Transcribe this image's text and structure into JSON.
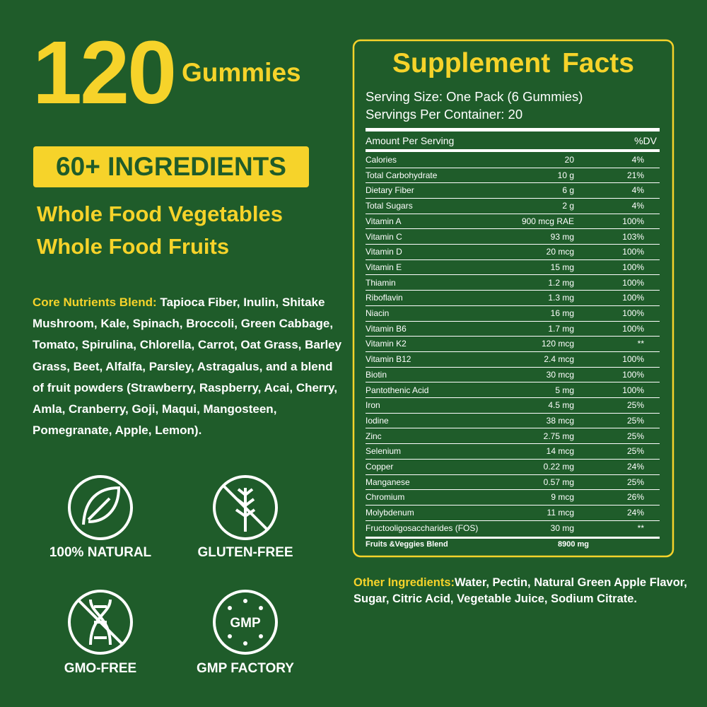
{
  "left": {
    "count": "120",
    "unit": "Gummies",
    "badge": "60+ INGREDIENTS",
    "lines": [
      "Whole Food Vegetables",
      "Whole Food Fruits"
    ],
    "core_label": "Core Nutrients Blend:",
    "core_text": "Tapioca Fiber, Inulin, Shitake Mushroom, Kale, Spinach, Broccoli, Green Cabbage, Tomato, Spirulina, Chlorella, Carrot, Oat Grass, Barley Grass, Beet, Alfalfa, Parsley, Astragalus, and a blend of fruit powders (Strawberry, Raspberry, Acai, Cherry, Amla, Cranberry, Goji, Maqui, Mangosteen, Pomegranate, Apple, Lemon).",
    "icons": [
      "100% NATURAL",
      "GLUTEN-FREE",
      "GMO-FREE",
      "GMP FACTORY"
    ],
    "gmp": "GMP"
  },
  "supplement_facts": {
    "title": "Supplement Facts",
    "serving_size": "Serving Size: One Pack (6 Gummies)",
    "servings": "Servings Per Container: 20",
    "header": [
      "Amount Per Serving",
      "%DV"
    ],
    "rows": [
      [
        "Calories",
        "20",
        "4%"
      ],
      [
        "Total Carbohydrate",
        "10 g",
        "21%"
      ],
      [
        "Dietary Fiber",
        "6 g",
        "4%"
      ],
      [
        "Total Sugars",
        "2 g",
        "4%"
      ],
      [
        "Vitamin A",
        "900 mcg RAE",
        "100%"
      ],
      [
        "Vitamin C",
        "93 mg",
        "103%"
      ],
      [
        "Vitamin D",
        "20 mcg",
        "100%"
      ],
      [
        "Vitamin E",
        "15 mg",
        "100%"
      ],
      [
        "Thiamin",
        "1.2 mg",
        "100%"
      ],
      [
        "Riboflavin",
        "1.3 mg",
        "100%"
      ],
      [
        "Niacin",
        "16 mg",
        "100%"
      ],
      [
        "Vitamin B6",
        "1.7 mg",
        "100%"
      ],
      [
        "Vitamin K2",
        "120 mcg",
        "**"
      ],
      [
        "Vitamin B12",
        "2.4 mcg",
        "100%"
      ],
      [
        "Biotin",
        "30 mcg",
        "100%"
      ],
      [
        "Pantothenic Acid",
        "5 mg",
        "100%"
      ],
      [
        "Iron",
        "4.5 mg",
        "25%"
      ],
      [
        "Iodine",
        "38 mcg",
        "25%"
      ],
      [
        "Zinc",
        "2.75 mg",
        "25%"
      ],
      [
        "Selenium",
        "14 mcg",
        "25%"
      ],
      [
        "Copper",
        "0.22 mg",
        "24%"
      ],
      [
        "Manganese",
        "0.57 mg",
        "25%"
      ],
      [
        "Chromium",
        "9 mcg",
        "26%"
      ],
      [
        "Molybdenum",
        "11 mcg",
        "24%"
      ],
      [
        "Fructooligosaccharides (FOS)",
        "30 mg",
        "**"
      ]
    ],
    "blend": [
      "Fruits &Veggies Blend",
      "8900 mg"
    ]
  },
  "other": {
    "label": "Other Ingredients:",
    "text": "Water, Pectin, Natural Green Apple Flavor, Sugar, Citric Acid, Vegetable Juice, Sodium Citrate."
  }
}
